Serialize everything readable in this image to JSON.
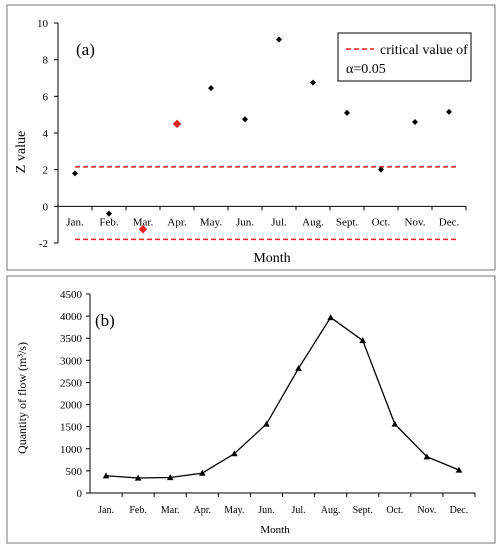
{
  "chart_data": [
    {
      "type": "scatter",
      "panel_label": "(a)",
      "xlabel": "Month",
      "ylabel": "Z value",
      "ylim": [
        -2,
        10
      ],
      "yticks": [
        "-2",
        "0",
        "2",
        "4",
        "6",
        "8",
        "10"
      ],
      "categories": [
        "Jan.",
        "Feb.",
        "Mar.",
        "Apr.",
        "May.",
        "Jun.",
        "Jul.",
        "Aug.",
        "Sept.",
        "Oct.",
        "Nov.",
        "Dec."
      ],
      "series": [
        {
          "values": [
            1.8,
            -0.4,
            -1.25,
            4.5,
            6.45,
            4.75,
            9.1,
            6.75,
            5.1,
            2.0,
            4.6,
            5.15
          ],
          "highlighted": [
            false,
            false,
            true,
            true,
            false,
            false,
            false,
            false,
            false,
            false,
            false,
            false
          ]
        }
      ],
      "reference_lines": [
        2.15,
        -1.8
      ],
      "legend": {
        "text": [
          "critical value of",
          "α=0.05"
        ],
        "placement": "top-right"
      },
      "colors": {
        "points": "#000000",
        "highlight": "#e8231e",
        "critical": "#e8231e"
      }
    },
    {
      "type": "line",
      "panel_label": "(b)",
      "xlabel": "Month",
      "ylabel": "Quantity  of  flow  (m³/s)",
      "ylim": [
        0,
        4500
      ],
      "yticks": [
        "0",
        "500",
        "1000",
        "1500",
        "2000",
        "2500",
        "3000",
        "3500",
        "4000",
        "4500"
      ],
      "categories": [
        "Jan.",
        "Feb.",
        "Mar.",
        "Apr.",
        "May.",
        "Jun.",
        "Jul.",
        "Aug.",
        "Sept.",
        "Oct.",
        "Nov.",
        "Dec."
      ],
      "series": [
        {
          "values": [
            390,
            340,
            350,
            450,
            890,
            1560,
            2820,
            3970,
            3450,
            1560,
            820,
            520
          ]
        }
      ],
      "colors": {
        "line": "#000000"
      }
    }
  ]
}
